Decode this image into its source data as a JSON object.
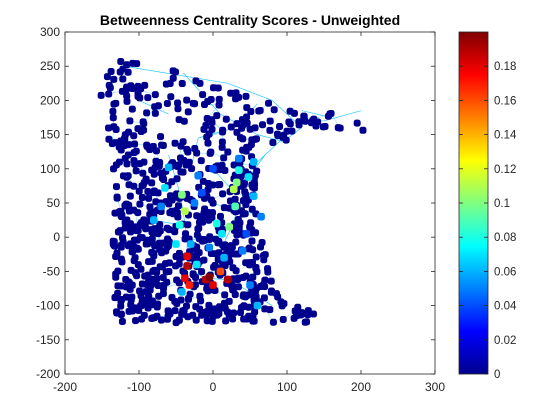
{
  "chart_data": {
    "type": "scatter",
    "title": "Betweenness Centrality Scores - Unweighted",
    "xlabel": "",
    "ylabel": "",
    "xlim": [
      -200,
      300
    ],
    "ylim": [
      -200,
      300
    ],
    "xticks": [
      "-200",
      "-100",
      "0",
      "100",
      "200",
      "300"
    ],
    "yticks": [
      "-200",
      "-150",
      "-100",
      "-50",
      "0",
      "50",
      "100",
      "150",
      "200",
      "250",
      "300"
    ],
    "grid": false,
    "colormap": "jet",
    "colorbar": {
      "range": [
        0,
        0.2
      ],
      "ticks": [
        "0",
        "0.02",
        "0.04",
        "0.06",
        "0.08",
        "0.1",
        "0.12",
        "0.14",
        "0.16",
        "0.18"
      ],
      "placement": "right"
    },
    "marker_color_default": "#00008f",
    "edge_color": "#00bfff",
    "highlight_points": [
      {
        "x": -35,
        "y": -28,
        "value": 0.18
      },
      {
        "x": -35,
        "y": -42,
        "value": 0.19
      },
      {
        "x": -38,
        "y": -60,
        "value": 0.18
      },
      {
        "x": -32,
        "y": -70,
        "value": 0.17
      },
      {
        "x": -10,
        "y": -62,
        "value": 0.19
      },
      {
        "x": -5,
        "y": -58,
        "value": 0.2
      },
      {
        "x": 0,
        "y": -70,
        "value": 0.18
      },
      {
        "x": 20,
        "y": -62,
        "value": 0.19
      },
      {
        "x": 10,
        "y": -50,
        "value": 0.16
      },
      {
        "x": -42,
        "y": 62,
        "value": 0.1
      },
      {
        "x": -38,
        "y": 38,
        "value": 0.11
      },
      {
        "x": 28,
        "y": 70,
        "value": 0.11
      },
      {
        "x": 32,
        "y": 80,
        "value": 0.1
      },
      {
        "x": 22,
        "y": 15,
        "value": 0.1
      },
      {
        "x": 30,
        "y": 45,
        "value": 0.09
      },
      {
        "x": 35,
        "y": 98,
        "value": 0.08
      },
      {
        "x": 48,
        "y": 88,
        "value": 0.07
      },
      {
        "x": 55,
        "y": 60,
        "value": 0.06
      },
      {
        "x": -45,
        "y": 18,
        "value": 0.08
      },
      {
        "x": -50,
        "y": -10,
        "value": 0.07
      },
      {
        "x": -30,
        "y": -10,
        "value": 0.06
      },
      {
        "x": -22,
        "y": -40,
        "value": 0.07
      },
      {
        "x": -42,
        "y": -80,
        "value": 0.06
      },
      {
        "x": 5,
        "y": 20,
        "value": 0.08
      },
      {
        "x": 12,
        "y": 5,
        "value": 0.07
      },
      {
        "x": -5,
        "y": -15,
        "value": 0.05
      },
      {
        "x": 15,
        "y": -30,
        "value": 0.06
      },
      {
        "x": 40,
        "y": -20,
        "value": 0.05
      },
      {
        "x": 50,
        "y": -70,
        "value": 0.05
      },
      {
        "x": 60,
        "y": -100,
        "value": 0.06
      },
      {
        "x": 55,
        "y": 110,
        "value": 0.06
      },
      {
        "x": 35,
        "y": 115,
        "value": 0.05
      },
      {
        "x": -60,
        "y": 102,
        "value": 0.06
      },
      {
        "x": -20,
        "y": 90,
        "value": 0.05
      },
      {
        "x": -65,
        "y": 72,
        "value": 0.07
      },
      {
        "x": -70,
        "y": 45,
        "value": 0.05
      },
      {
        "x": -80,
        "y": 25,
        "value": 0.06
      },
      {
        "x": 0,
        "y": 100,
        "value": 0.04
      },
      {
        "x": 65,
        "y": 30,
        "value": 0.05
      },
      {
        "x": -25,
        "y": 50,
        "value": 0.05
      },
      {
        "x": 45,
        "y": 5,
        "value": 0.04
      },
      {
        "x": -15,
        "y": 65,
        "value": 0.04
      }
    ]
  }
}
